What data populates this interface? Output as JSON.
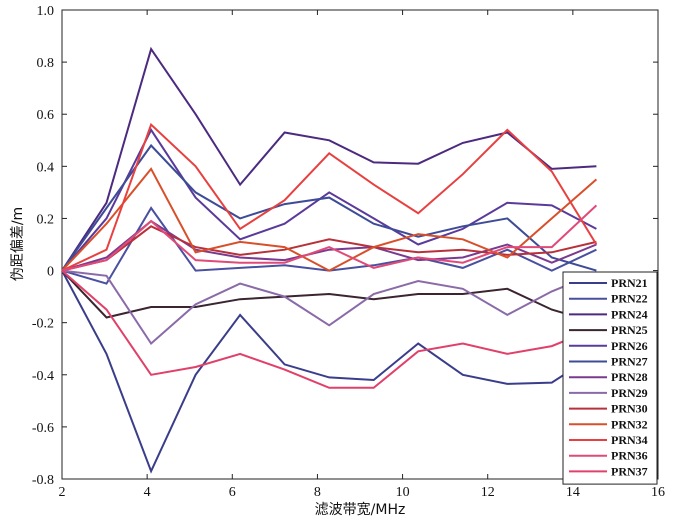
{
  "chart_data": {
    "type": "line",
    "xlabel": "滤波带宽/MHz",
    "ylabel": "伪距偏差/m",
    "xlim": [
      2,
      16
    ],
    "ylim": [
      -0.8,
      1.0
    ],
    "x_ticks": [
      "2",
      "4",
      "6",
      "8",
      "10",
      "12",
      "14",
      "16"
    ],
    "y_ticks": [
      "-0.8",
      "-0.6",
      "-0.4",
      "-0.2",
      "0",
      "0.2",
      "0.4",
      "0.6",
      "0.8",
      "1.0"
    ],
    "legend_position": "lower-right",
    "x": [
      2,
      3.046,
      4.092,
      5.138,
      6.184,
      7.23,
      8.276,
      9.322,
      10.368,
      11.414,
      12.46,
      13.506,
      14.552
    ],
    "series": [
      {
        "name": "PRN21",
        "color": "#3a3d8a",
        "values": [
          0,
          -0.32,
          -0.77,
          -0.4,
          -0.17,
          -0.36,
          -0.41,
          -0.42,
          -0.28,
          -0.4,
          -0.435,
          -0.43,
          -0.32
        ]
      },
      {
        "name": "PRN22",
        "color": "#4a4fa0",
        "values": [
          0,
          -0.05,
          0.24,
          0.0,
          0.01,
          0.02,
          0.0,
          0.02,
          0.05,
          0.01,
          0.08,
          0.0,
          0.08
        ]
      },
      {
        "name": "PRN24",
        "color": "#4b2a80",
        "values": [
          0,
          0.26,
          0.85,
          0.6,
          0.33,
          0.53,
          0.5,
          0.415,
          0.41,
          0.49,
          0.53,
          0.39,
          0.4
        ]
      },
      {
        "name": "PRN25",
        "color": "#3a2530",
        "values": [
          0,
          -0.18,
          -0.14,
          -0.14,
          -0.11,
          -0.1,
          -0.09,
          -0.11,
          -0.09,
          -0.09,
          -0.07,
          -0.15,
          -0.2
        ]
      },
      {
        "name": "PRN26",
        "color": "#5a3a9a",
        "values": [
          0,
          0.2,
          0.54,
          0.28,
          0.12,
          0.18,
          0.3,
          0.2,
          0.1,
          0.16,
          0.26,
          0.25,
          0.16
        ]
      },
      {
        "name": "PRN27",
        "color": "#3e4c98",
        "values": [
          0,
          0.24,
          0.48,
          0.3,
          0.2,
          0.255,
          0.28,
          0.18,
          0.13,
          0.17,
          0.2,
          0.05,
          0.0
        ]
      },
      {
        "name": "PRN28",
        "color": "#7a3a90",
        "values": [
          0,
          0.05,
          0.19,
          0.08,
          0.05,
          0.04,
          0.08,
          0.09,
          0.04,
          0.05,
          0.1,
          0.03,
          0.1
        ]
      },
      {
        "name": "PRN29",
        "color": "#8a6aa8",
        "values": [
          0,
          -0.02,
          -0.28,
          -0.13,
          -0.05,
          -0.1,
          -0.21,
          -0.09,
          -0.04,
          -0.07,
          -0.17,
          -0.08,
          -0.01
        ]
      },
      {
        "name": "PRN30",
        "color": "#b8303a",
        "values": [
          0,
          0.04,
          0.17,
          0.09,
          0.06,
          0.08,
          0.12,
          0.09,
          0.07,
          0.08,
          0.06,
          0.07,
          0.11
        ]
      },
      {
        "name": "PRN32",
        "color": "#d8502a",
        "values": [
          0,
          0.18,
          0.39,
          0.07,
          0.11,
          0.09,
          0.0,
          0.09,
          0.14,
          0.12,
          0.05,
          0.2,
          0.35
        ]
      },
      {
        "name": "PRN34",
        "color": "#e84040",
        "values": [
          0,
          0.08,
          0.56,
          0.4,
          0.16,
          0.27,
          0.45,
          0.33,
          0.22,
          0.37,
          0.54,
          0.38,
          0.1
        ]
      },
      {
        "name": "PRN36",
        "color": "#e04a78",
        "values": [
          0,
          0.04,
          0.19,
          0.04,
          0.03,
          0.03,
          0.09,
          0.01,
          0.05,
          0.03,
          0.09,
          0.09,
          0.25
        ]
      },
      {
        "name": "PRN37",
        "color": "#e0406a",
        "values": [
          0,
          -0.15,
          -0.4,
          -0.37,
          -0.32,
          -0.38,
          -0.45,
          -0.45,
          -0.31,
          -0.28,
          -0.32,
          -0.29,
          -0.22
        ]
      }
    ]
  }
}
